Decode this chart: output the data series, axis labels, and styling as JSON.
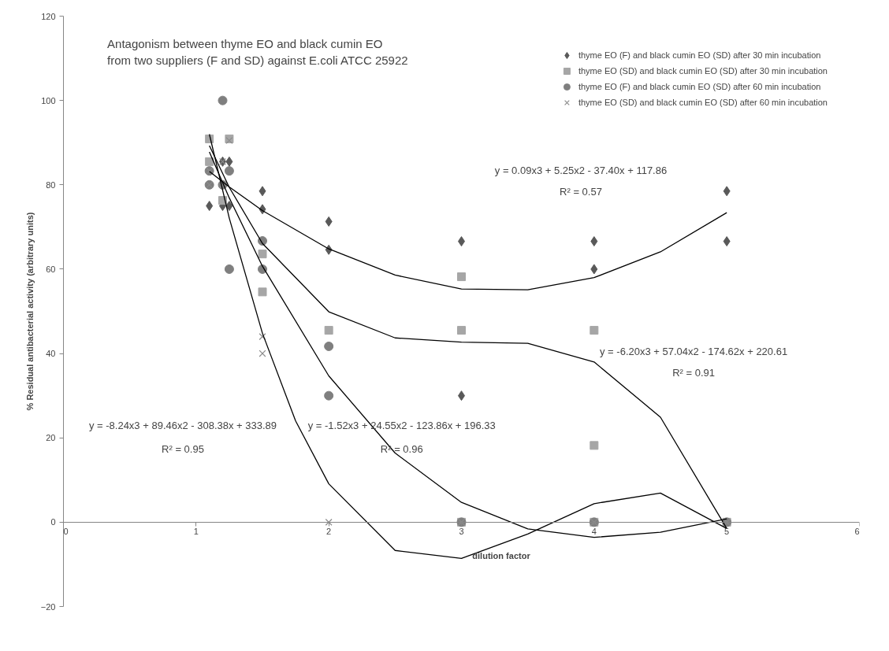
{
  "chart_data": {
    "type": "scatter",
    "title": "Antagonism between thyme EO and black cumin EO\nfrom two suppliers (F and SD) against E.coli ATCC 25922",
    "xlabel": "dilution factor",
    "ylabel": "% Residual antibacterial activity (arbitrary units)",
    "xlim": [
      0,
      6
    ],
    "xticks": [
      0,
      1,
      2,
      3,
      4,
      5,
      6
    ],
    "ylim": [
      -20,
      120
    ],
    "yticks": [
      -20,
      0,
      20,
      40,
      60,
      80,
      100,
      120
    ],
    "grid": false,
    "legend": "top right",
    "series": [
      {
        "name": "thyme EO (F) and black cumin EO (SD) after 30 min incubation",
        "color": "#595959",
        "marker": "diamond",
        "x": [
          1.1,
          1.2,
          1.2,
          1.25,
          1.25,
          1.5,
          1.5,
          2,
          2,
          3,
          3,
          4,
          4,
          5,
          5
        ],
        "values": [
          75,
          85.5,
          75,
          85.5,
          75,
          78.5,
          74.2,
          71.3,
          64.6,
          66.6,
          30,
          66.6,
          60,
          78.5,
          66.6
        ]
      },
      {
        "name": "thyme EO (SD) and black cumin EO (SD) after 30 min incubation",
        "color": "#a6a6a6",
        "marker": "square",
        "x": [
          1.1,
          1.1,
          1.2,
          1.25,
          1.5,
          1.5,
          2,
          3,
          3,
          3,
          4,
          4,
          4,
          5
        ],
        "values": [
          90.9,
          85.5,
          76.3,
          90.9,
          63.6,
          54.6,
          45.5,
          58.2,
          45.5,
          0,
          45.5,
          18.2,
          0,
          0
        ]
      },
      {
        "name": "thyme EO (F) and black cumin EO (SD) after 60 min incubation",
        "color": "#7f7f7f",
        "marker": "circle",
        "x": [
          1.1,
          1.1,
          1.2,
          1.2,
          1.25,
          1.25,
          1.5,
          1.5,
          2,
          2,
          3,
          4,
          5
        ],
        "values": [
          83.3,
          80,
          100,
          80,
          83.3,
          60,
          66.7,
          60,
          41.7,
          30,
          0,
          0,
          0
        ]
      },
      {
        "name": "thyme EO (SD) and black cumin EO (SD) after 60 min incubation",
        "color": "#8c8c8c",
        "marker": "cross",
        "x": [
          1.1,
          1.1,
          1.2,
          1.2,
          1.25,
          1.5,
          1.5,
          2,
          3,
          4,
          5
        ],
        "values": [
          83.3,
          80,
          85.5,
          80,
          90.5,
          44,
          40,
          0,
          0,
          0,
          0
        ]
      },
      {
        "type": "line",
        "color": "#000000",
        "x": [
          1.1,
          1.25,
          1.5,
          2,
          2.5,
          3,
          3.5,
          4,
          4.5,
          5
        ],
        "values": [
          83.2,
          79.5,
          73.9,
          64.8,
          58.6,
          55.3,
          55.1,
          58.0,
          64.1,
          73.4
        ]
      },
      {
        "type": "line",
        "color": "#000000",
        "x": [
          1.1,
          1.25,
          1.5,
          2,
          2.5,
          3,
          3.5,
          4,
          4.5,
          5
        ],
        "values": [
          89.3,
          79.4,
          66.1,
          49.9,
          43.7,
          42.7,
          42.4,
          38.0,
          24.9,
          -1.5
        ]
      },
      {
        "type": "line",
        "color": "#000000",
        "x": [
          1.1,
          1.25,
          1.5,
          2,
          2.5,
          3,
          3.5,
          4,
          4.5,
          5
        ],
        "values": [
          87.8,
          76.9,
          60.7,
          34.7,
          16.4,
          4.7,
          -1.6,
          -3.6,
          -2.4,
          0.8
        ]
      },
      {
        "type": "line",
        "color": "#000000",
        "x": [
          1.1,
          1.25,
          1.5,
          1.75,
          2,
          2.5,
          3,
          3.5,
          4,
          4.5,
          5
        ],
        "values": [
          92.0,
          72.1,
          44.8,
          24.0,
          9.1,
          -6.7,
          -8.6,
          -2.8,
          4.4,
          6.9,
          -1.5
        ]
      }
    ],
    "annotations": [
      "y = 0.09x3 + 5.25x2 - 37.40x + 117.86",
      "R² = 0.57",
      "y = -6.20x3 + 57.04x2 - 174.62x + 220.61",
      "R² = 0.91",
      "y = -1.52x3 + 24.55x2 - 123.86x + 196.33",
      "R² = 0.96",
      "y = -8.24x3 + 89.46x2 - 308.38x + 333.89",
      "R² = 0.95"
    ]
  }
}
